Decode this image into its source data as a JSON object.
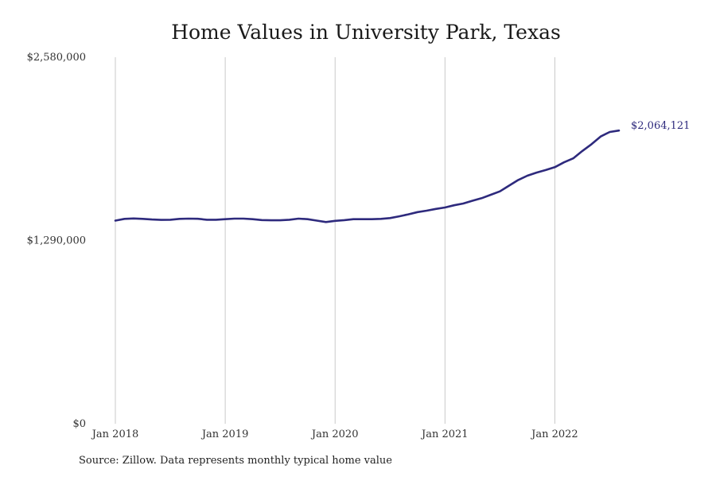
{
  "chart_data": {
    "type": "line",
    "title": "Home Values in University Park, Texas",
    "xlabel": "",
    "ylabel": "",
    "ylim": [
      0,
      2580000
    ],
    "y_ticks": [
      0,
      1290000,
      2580000
    ],
    "y_tick_labels": [
      "$0",
      "$1,290,000",
      "$2,580,000"
    ],
    "x_ticks": [
      "2018-01",
      "2019-01",
      "2020-01",
      "2021-01",
      "2022-01"
    ],
    "x_tick_labels": [
      "Jan 2018",
      "Jan 2019",
      "Jan 2020",
      "Jan 2021",
      "Jan 2022"
    ],
    "x_range": [
      "2018-01",
      "2022-08"
    ],
    "grid": "vertical",
    "line_color": "#2e2a7d",
    "grid_color": "#c8c8c8",
    "series": [
      {
        "end_label": "$2,064,121",
        "x": [
          "2018-01",
          "2018-02",
          "2018-03",
          "2018-04",
          "2018-05",
          "2018-06",
          "2018-07",
          "2018-08",
          "2018-09",
          "2018-10",
          "2018-11",
          "2018-12",
          "2019-01",
          "2019-02",
          "2019-03",
          "2019-04",
          "2019-05",
          "2019-06",
          "2019-07",
          "2019-08",
          "2019-09",
          "2019-10",
          "2019-11",
          "2019-12",
          "2020-01",
          "2020-02",
          "2020-03",
          "2020-04",
          "2020-05",
          "2020-06",
          "2020-07",
          "2020-08",
          "2020-09",
          "2020-10",
          "2020-11",
          "2020-12",
          "2021-01",
          "2021-02",
          "2021-03",
          "2021-04",
          "2021-05",
          "2021-06",
          "2021-07",
          "2021-08",
          "2021-09",
          "2021-10",
          "2021-11",
          "2021-12",
          "2022-01",
          "2022-02",
          "2022-03",
          "2022-04",
          "2022-05",
          "2022-06",
          "2022-07",
          "2022-08"
        ],
        "values": [
          1430000,
          1442000,
          1445000,
          1442000,
          1438000,
          1435000,
          1436000,
          1442000,
          1444000,
          1443000,
          1436000,
          1436000,
          1440000,
          1444000,
          1444000,
          1440000,
          1434000,
          1432000,
          1432000,
          1436000,
          1444000,
          1440000,
          1430000,
          1420000,
          1428000,
          1433000,
          1440000,
          1440000,
          1440000,
          1442000,
          1448000,
          1460000,
          1474000,
          1490000,
          1500000,
          1512000,
          1522000,
          1538000,
          1550000,
          1570000,
          1588000,
          1612000,
          1636000,
          1676000,
          1716000,
          1746000,
          1768000,
          1786000,
          1806000,
          1840000,
          1868000,
          1920000,
          1968000,
          2022000,
          2054000,
          2064121
        ]
      }
    ],
    "source_note": "Source: Zillow. Data represents monthly typical home value"
  }
}
